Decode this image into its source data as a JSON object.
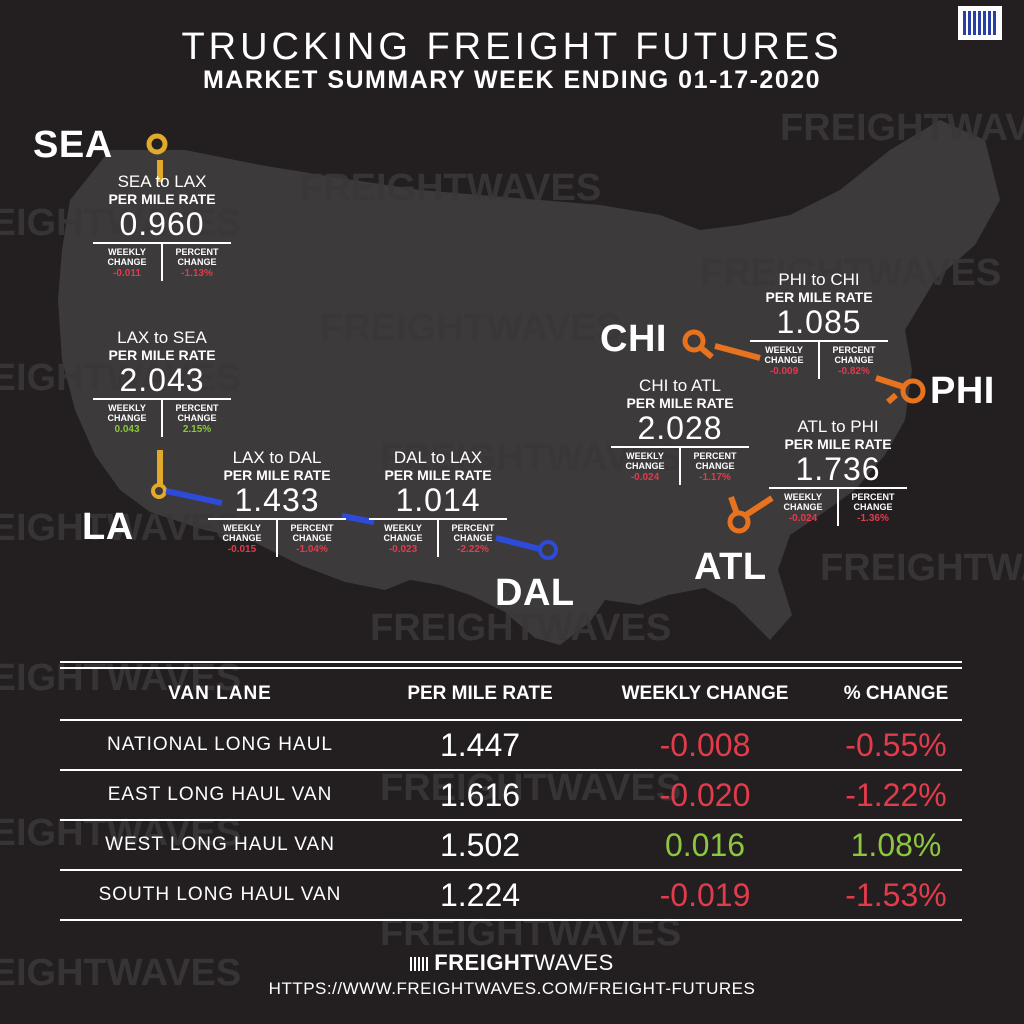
{
  "header": {
    "title": "TRUCKING FREIGHT FUTURES",
    "subtitle": "MARKET SUMMARY WEEK ENDING 01-17-2020"
  },
  "watermark": "FREIGHTWAVES",
  "colors": {
    "background": "#231f20",
    "gold": "#e2aa2a",
    "blue": "#2d4bd8",
    "orange": "#e8731f",
    "negative": "#e23b4b",
    "positive": "#8dc63f"
  },
  "cities": {
    "sea": "SEA",
    "la": "LA",
    "dal": "DAL",
    "chi": "CHI",
    "atl": "ATL",
    "phi": "PHI"
  },
  "labels": {
    "per_mile_rate": "PER MILE RATE",
    "weekly_change": "WEEKLY CHANGE",
    "percent_change": "PERCENT CHANGE"
  },
  "lanes": {
    "sea_lax": {
      "name": "SEA to LAX",
      "rate": "0.960",
      "weekly": "-0.011",
      "percent": "-1.13%",
      "direction": "negative"
    },
    "lax_sea": {
      "name": "LAX to SEA",
      "rate": "2.043",
      "weekly": "0.043",
      "percent": "2.15%",
      "direction": "positive"
    },
    "lax_dal": {
      "name": "LAX to DAL",
      "rate": "1.433",
      "weekly": "-0.015",
      "percent": "-1.04%",
      "direction": "negative"
    },
    "dal_lax": {
      "name": "DAL to LAX",
      "rate": "1.014",
      "weekly": "-0.023",
      "percent": "-2.22%",
      "direction": "negative"
    },
    "phi_chi": {
      "name": "PHI to CHI",
      "rate": "1.085",
      "weekly": "-0.009",
      "percent": "-0.82%",
      "direction": "negative"
    },
    "chi_atl": {
      "name": "CHI to ATL",
      "rate": "2.028",
      "weekly": "-0.024",
      "percent": "-1.17%",
      "direction": "negative"
    },
    "atl_phi": {
      "name": "ATL to PHI",
      "rate": "1.736",
      "weekly": "-0.024",
      "percent": "-1.36%",
      "direction": "negative"
    }
  },
  "table": {
    "headers": [
      "VAN LANE",
      "PER MILE RATE",
      "WEEKLY CHANGE",
      "% CHANGE"
    ],
    "rows": [
      {
        "lane": "NATIONAL LONG HAUL",
        "rate": "1.447",
        "weekly": "-0.008",
        "percent": "-0.55%",
        "direction": "negative"
      },
      {
        "lane": "EAST LONG HAUL VAN",
        "rate": "1.616",
        "weekly": "-0.020",
        "percent": "-1.22%",
        "direction": "negative"
      },
      {
        "lane": "WEST LONG HAUL VAN",
        "rate": "1.502",
        "weekly": "0.016",
        "percent": "1.08%",
        "direction": "positive"
      },
      {
        "lane": "SOUTH LONG HAUL VAN",
        "rate": "1.224",
        "weekly": "-0.019",
        "percent": "-1.53%",
        "direction": "negative"
      }
    ]
  },
  "footer": {
    "brand_bold": "FREIGHT",
    "brand_light": "WAVES",
    "url": "HTTPS://WWW.FREIGHTWAVES.COM/FREIGHT-FUTURES"
  }
}
